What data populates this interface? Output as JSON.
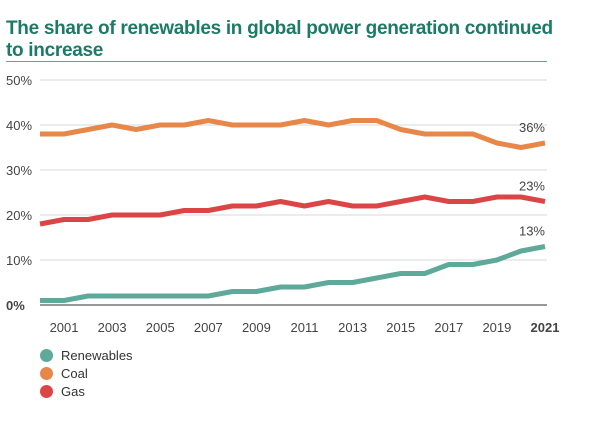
{
  "chart_data": {
    "type": "line",
    "title": "The share of renewables in global power generation continued to increase",
    "xlabel": "",
    "ylabel": "",
    "x": [
      2000,
      2001,
      2002,
      2003,
      2004,
      2005,
      2006,
      2007,
      2008,
      2009,
      2010,
      2011,
      2012,
      2013,
      2014,
      2015,
      2016,
      2017,
      2018,
      2019,
      2020,
      2021
    ],
    "x_tick_labels": [
      "2001",
      "2003",
      "2005",
      "2007",
      "2009",
      "2011",
      "2013",
      "2015",
      "2017",
      "2019",
      "2021"
    ],
    "y_tick_labels": [
      "0%",
      "10%",
      "20%",
      "30%",
      "40%",
      "50%"
    ],
    "y_ticks": [
      0,
      10,
      20,
      30,
      40,
      50
    ],
    "ylim": [
      0,
      50
    ],
    "grid": true,
    "legend_position": "bottom-left",
    "series": [
      {
        "name": "Renewables",
        "color": "#5fa99b",
        "values": [
          1,
          1,
          2,
          2,
          2,
          2,
          2,
          2,
          3,
          3,
          4,
          4,
          5,
          5,
          6,
          7,
          7,
          9,
          9,
          10,
          12,
          13
        ],
        "end_label": "13%"
      },
      {
        "name": "Coal",
        "color": "#e8874a",
        "values": [
          38,
          38,
          39,
          40,
          39,
          40,
          40,
          41,
          40,
          40,
          40,
          41,
          40,
          41,
          41,
          39,
          38,
          38,
          38,
          36,
          35,
          36
        ],
        "end_label": "36%"
      },
      {
        "name": "Gas",
        "color": "#dc4545",
        "values": [
          18,
          19,
          19,
          20,
          20,
          20,
          21,
          21,
          22,
          22,
          23,
          22,
          23,
          22,
          22,
          23,
          24,
          23,
          23,
          24,
          24,
          23
        ],
        "end_label": "23%"
      }
    ]
  }
}
